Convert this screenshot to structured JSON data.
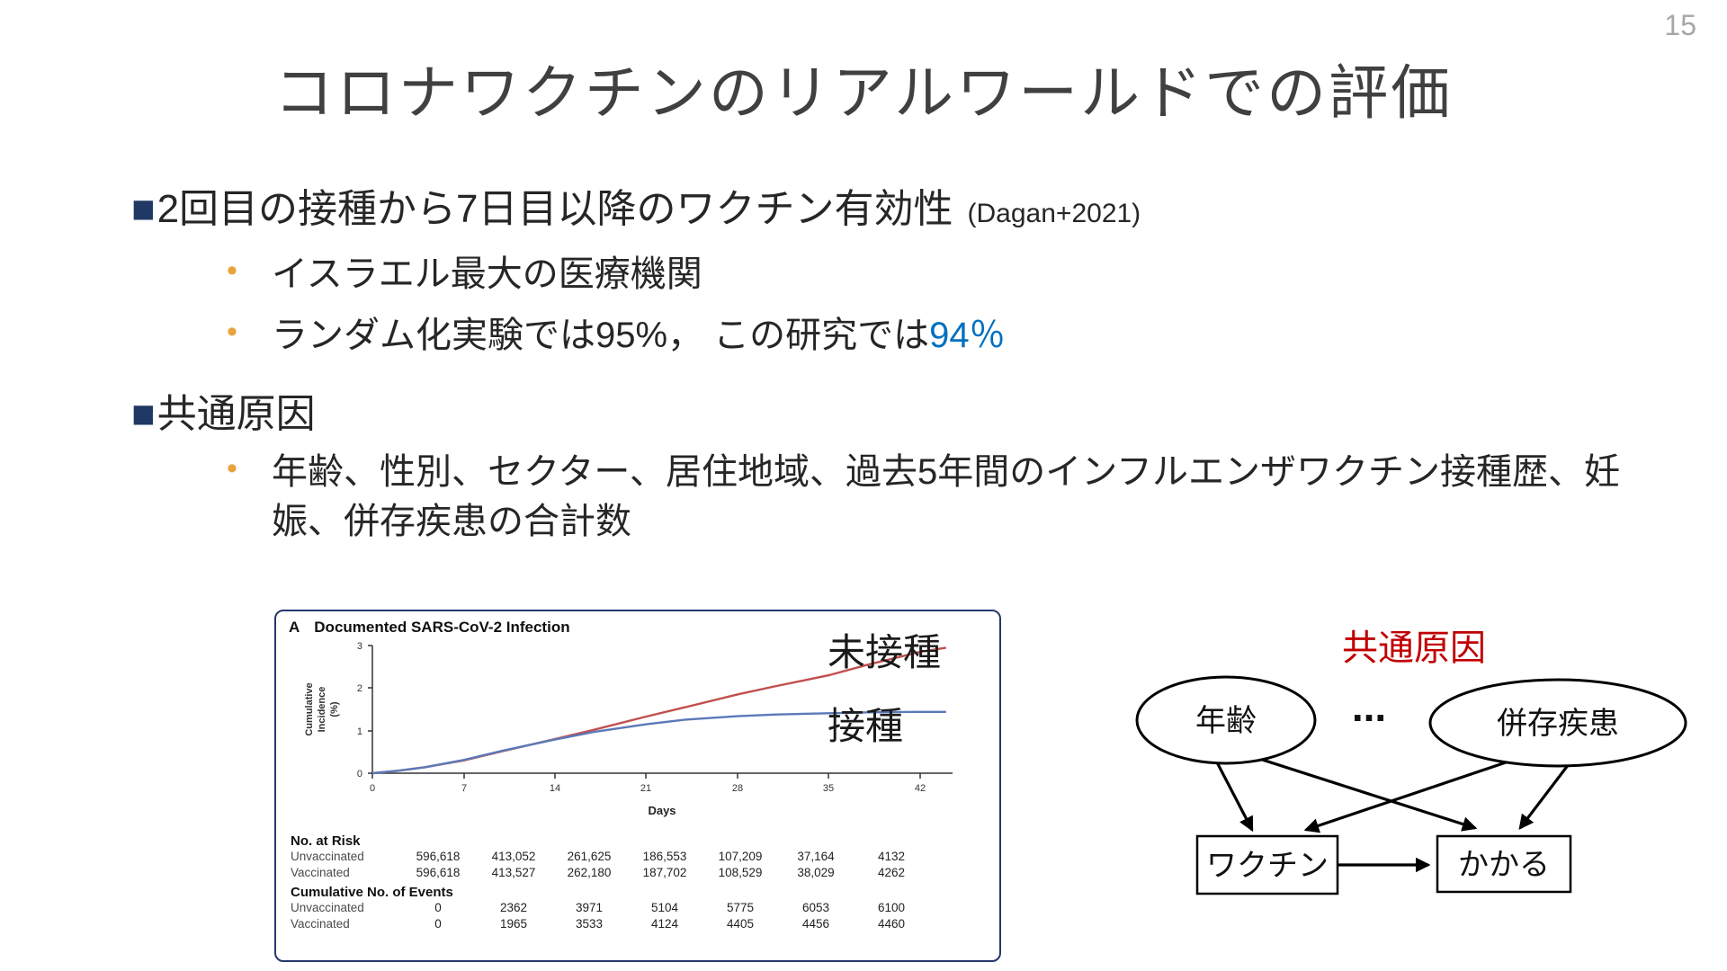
{
  "slide": {
    "page_number": "15",
    "title": "コロナワクチンのリアルワールドでの評価"
  },
  "bullets": {
    "square_marker": "■",
    "sub_marker": "•",
    "item1": {
      "text": "2回目の接種から7日目以降のワクチン有効性",
      "citation": "(Dagan+2021)",
      "sub1": "イスラエル最大の医療機関",
      "sub2_prefix": "ランダム化実験では95%， この研究では",
      "sub2_highlight": "94％"
    },
    "item2": {
      "text": "共通原因",
      "sub1": "年齢、性別、セクター、居住地域、過去5年間のインフルエンザワクチン接種歴、妊娠、併存疾患の合計数"
    }
  },
  "figure": {
    "panel_label": "A",
    "panel_title": "Documented SARS-CoV-2 Infection",
    "y_axis_label_lines": [
      "Cumulative",
      "Incidence",
      "(%)"
    ],
    "x_axis_label": "Days",
    "x_ticks": [
      "0",
      "7",
      "14",
      "21",
      "28",
      "35",
      "42"
    ],
    "y_ticks": [
      "0",
      "1",
      "2",
      "3"
    ],
    "risk_table": {
      "title": "No. at Risk",
      "rows": [
        {
          "label": "Unvaccinated",
          "values": [
            "596,618",
            "413,052",
            "261,625",
            "186,553",
            "107,209",
            "37,164",
            "4132"
          ]
        },
        {
          "label": "Vaccinated",
          "values": [
            "596,618",
            "413,527",
            "262,180",
            "187,702",
            "108,529",
            "38,029",
            "4262"
          ]
        }
      ]
    },
    "events_table": {
      "title": "Cumulative No. of Events",
      "rows": [
        {
          "label": "Unvaccinated",
          "values": [
            "0",
            "2362",
            "3971",
            "5104",
            "5775",
            "6053",
            "6100"
          ]
        },
        {
          "label": "Vaccinated",
          "values": [
            "0",
            "1965",
            "3533",
            "4124",
            "4405",
            "4456",
            "4460"
          ]
        }
      ]
    }
  },
  "curve_labels": {
    "unvaccinated": "未接種",
    "vaccinated": "接種"
  },
  "chart_data": {
    "type": "line",
    "title": "Documented SARS-CoV-2 Infection",
    "xlabel": "Days",
    "ylabel": "Cumulative Incidence (%)",
    "xlim": [
      0,
      44.5
    ],
    "ylim": [
      0,
      3
    ],
    "grid": false,
    "series": [
      {
        "name": "未接種 (Unvaccinated)",
        "color": "#c0504d",
        "points": [
          [
            0,
            0
          ],
          [
            2,
            0.06
          ],
          [
            4,
            0.14
          ],
          [
            7,
            0.3
          ],
          [
            10,
            0.52
          ],
          [
            14,
            0.8
          ],
          [
            17,
            1.02
          ],
          [
            21,
            1.33
          ],
          [
            24,
            1.55
          ],
          [
            28,
            1.85
          ],
          [
            31,
            2.05
          ],
          [
            35,
            2.3
          ],
          [
            38,
            2.55
          ],
          [
            42,
            2.85
          ],
          [
            44,
            2.95
          ]
        ]
      },
      {
        "name": "接種 (Vaccinated)",
        "color": "#5b79b8",
        "points": [
          [
            0,
            0
          ],
          [
            2,
            0.06
          ],
          [
            4,
            0.14
          ],
          [
            7,
            0.31
          ],
          [
            10,
            0.53
          ],
          [
            14,
            0.79
          ],
          [
            17,
            0.97
          ],
          [
            21,
            1.15
          ],
          [
            24,
            1.26
          ],
          [
            28,
            1.34
          ],
          [
            31,
            1.38
          ],
          [
            35,
            1.41
          ],
          [
            38,
            1.43
          ],
          [
            42,
            1.44
          ],
          [
            44,
            1.44
          ]
        ]
      }
    ]
  },
  "diagram": {
    "title": "共通原因",
    "nodes": {
      "age": "年齢",
      "dots": "...",
      "comorbidity": "併存疾患",
      "treatment": "ワクチン",
      "outcome": "かかる"
    }
  },
  "colors": {
    "highlight_blue": "#0070c0",
    "diagram_title_red": "#c00000",
    "square_bullet_navy": "#1f3864",
    "round_bullet_orange": "#e8a33d",
    "curve_red": "#c0504d",
    "curve_blue": "#5b79b8",
    "figure_border_navy": "#24386b",
    "page_number_gray": "#a6a6a6"
  }
}
